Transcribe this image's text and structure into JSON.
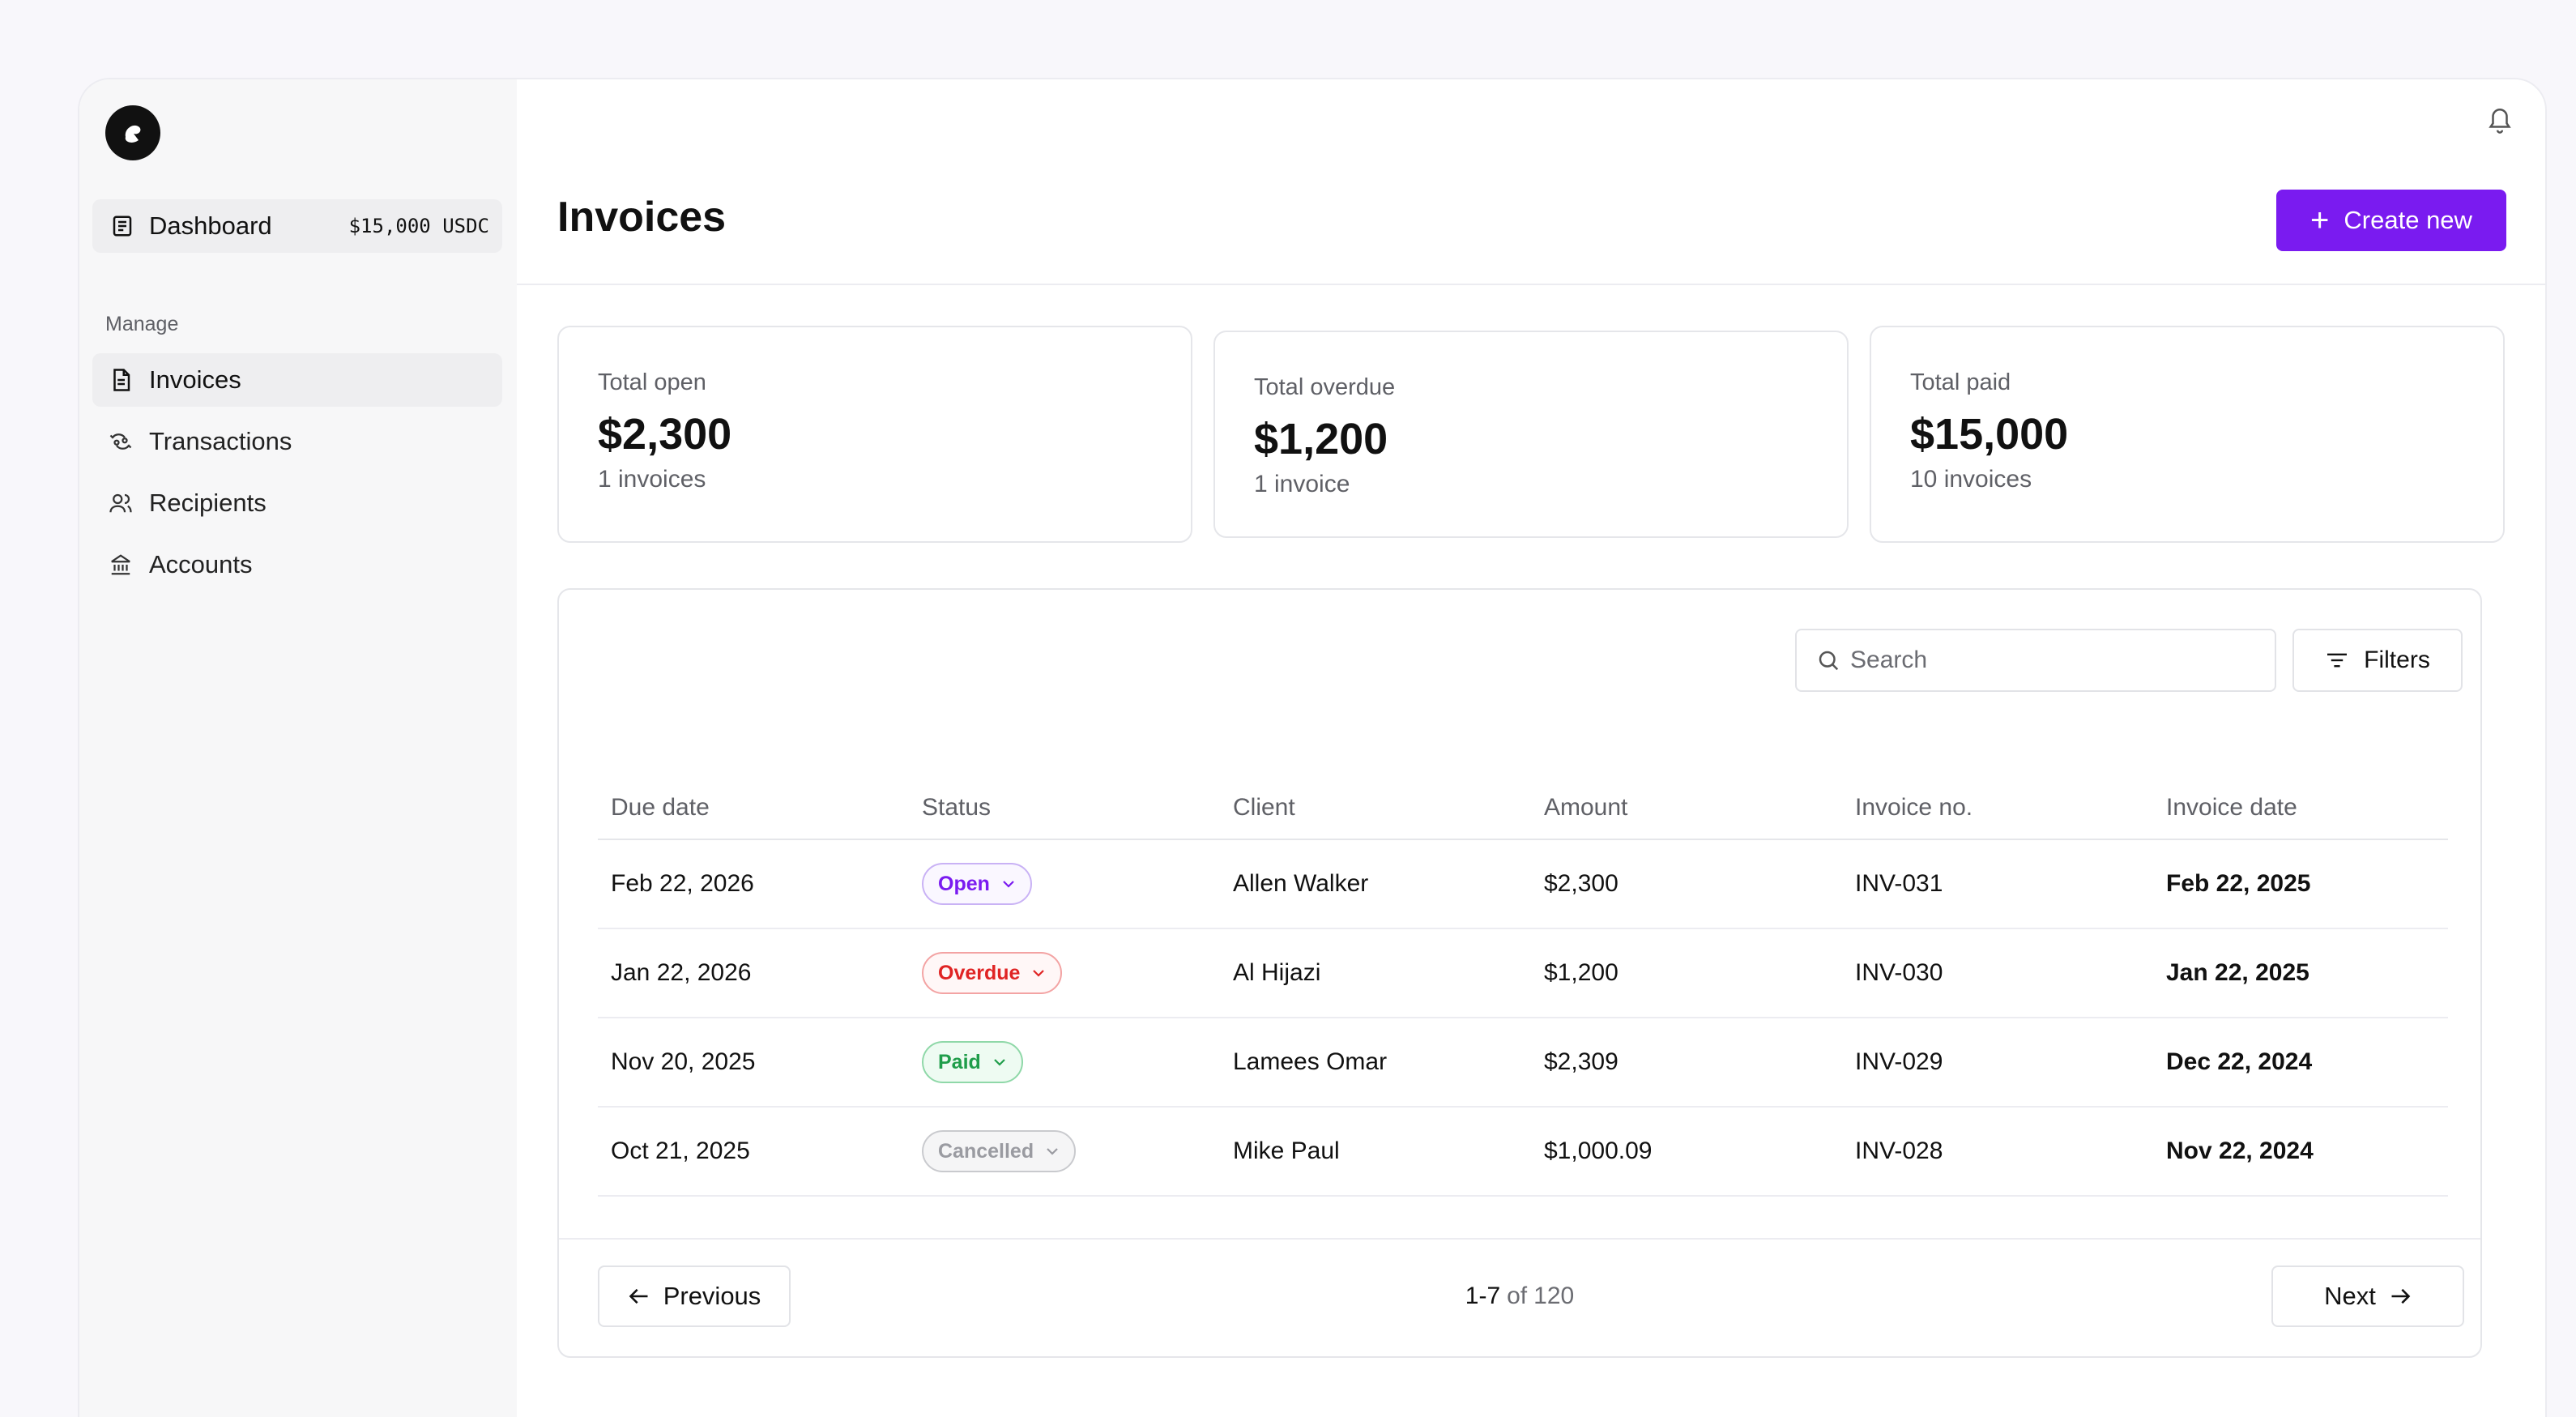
{
  "sidebar": {
    "dashboard": {
      "label": "Dashboard",
      "balance": "$15,000 USDC"
    },
    "section_label": "Manage",
    "items": [
      {
        "label": "Invoices",
        "icon": "invoice-icon",
        "active": true
      },
      {
        "label": "Transactions",
        "icon": "transactions-icon",
        "active": false
      },
      {
        "label": "Recipients",
        "icon": "users-icon",
        "active": false
      },
      {
        "label": "Accounts",
        "icon": "bank-icon",
        "active": false
      }
    ]
  },
  "header": {
    "title": "Invoices",
    "create_label": "Create new"
  },
  "summary": [
    {
      "label": "Total open",
      "value": "$2,300",
      "sub": "1 invoices"
    },
    {
      "label": "Total overdue",
      "value": "$1,200",
      "sub": "1 invoice"
    },
    {
      "label": "Total paid",
      "value": "$15,000",
      "sub": "10 invoices"
    }
  ],
  "toolbar": {
    "search_placeholder": "Search",
    "filters_label": "Filters"
  },
  "table": {
    "columns": [
      "Due date",
      "Status",
      "Client",
      "Amount",
      "Invoice no.",
      "Invoice date"
    ],
    "rows": [
      {
        "due": "Feb 22, 2026",
        "status": "Open",
        "client": "Allen Walker",
        "amount": "$2,300",
        "invoice_no": "INV-031",
        "invoice_date": "Feb 22, 2025"
      },
      {
        "due": "Jan 22, 2026",
        "status": "Overdue",
        "client": "Al Hijazi",
        "amount": "$1,200",
        "invoice_no": "INV-030",
        "invoice_date": "Jan 22, 2025"
      },
      {
        "due": "Nov 20, 2025",
        "status": "Paid",
        "client": "Lamees Omar",
        "amount": "$2,309",
        "invoice_no": "INV-029",
        "invoice_date": "Dec 22, 2024"
      },
      {
        "due": "Oct 21, 2025",
        "status": "Cancelled",
        "client": "Mike Paul",
        "amount": "$1,000.09",
        "invoice_no": "INV-028",
        "invoice_date": "Nov 22, 2024"
      }
    ]
  },
  "status_colors": {
    "Open": {
      "text": "#7a1bf0",
      "border": "#c9b2f5",
      "bg": "#faf7ff"
    },
    "Overdue": {
      "text": "#e02424",
      "border": "#f3a3a3",
      "bg": "#fff7f7"
    },
    "Paid": {
      "text": "#1f9d4a",
      "border": "#8fd8a8",
      "bg": "#eefbf2"
    },
    "Cancelled": {
      "text": "#9a9ba1",
      "border": "#c9cace",
      "bg": "#f5f5f6"
    }
  },
  "pagination": {
    "range": "1-7",
    "of": "of",
    "total": "120",
    "prev_label": "Previous",
    "next_label": "Next"
  },
  "accent_color": "#7a1bf0"
}
